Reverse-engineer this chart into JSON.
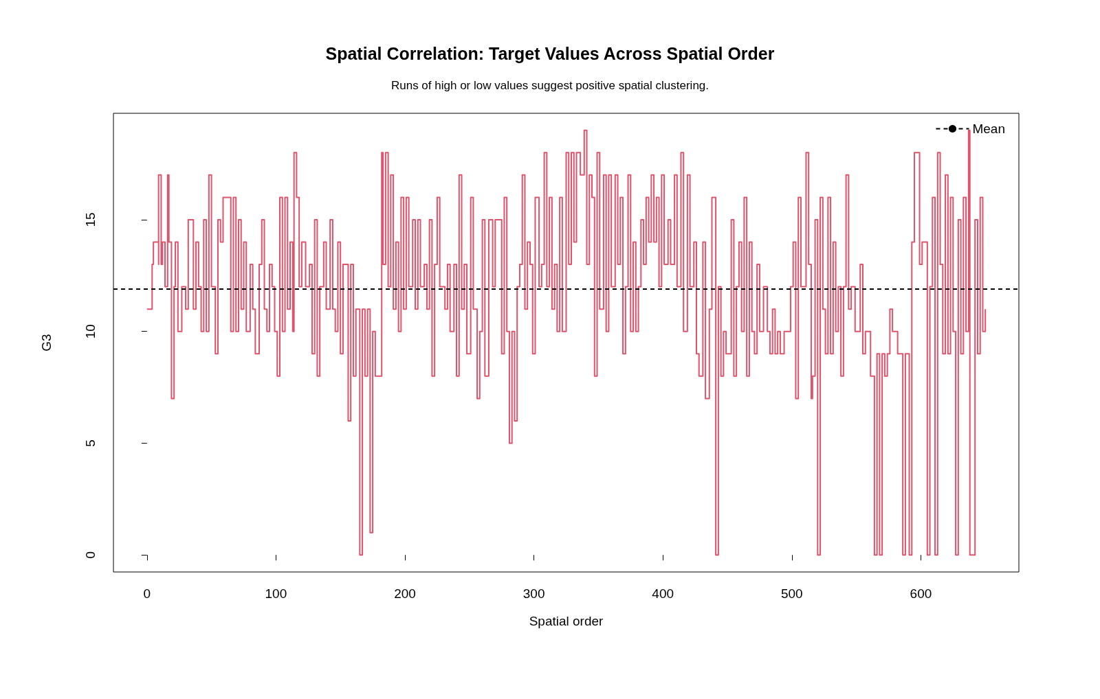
{
  "chart_data": {
    "type": "step",
    "title": "Spatial Correlation: Target Values Across Spatial Order",
    "subtitle": "Runs of high or low values suggest positive spatial clustering.",
    "xlabel": "Spatial order",
    "ylabel": "G3",
    "xlim": [
      -26,
      676
    ],
    "ylim": [
      -0.76,
      19.76
    ],
    "xticks": [
      0,
      100,
      200,
      300,
      400,
      500,
      600
    ],
    "yticks": [
      0,
      5,
      10,
      15
    ],
    "grid": false,
    "legend": "top right",
    "line_style": "solid",
    "marker": "none",
    "ref_lines": [
      {
        "axis": "y",
        "value": 11.9,
        "label": "Mean",
        "color": "#000000",
        "line_style": "dashed"
      }
    ],
    "series": [
      {
        "color": "#df536b",
        "x": [
          0,
          3,
          4,
          5,
          6,
          9,
          9,
          11,
          12,
          14,
          16,
          17,
          19,
          21,
          22,
          24,
          27,
          30,
          32,
          34,
          36,
          38,
          40,
          42,
          44,
          46,
          48,
          50,
          53,
          55,
          57,
          59,
          63,
          65,
          67,
          69,
          71,
          73,
          75,
          77,
          80,
          82,
          84,
          87,
          89,
          91,
          93,
          95,
          97,
          99,
          101,
          103,
          105,
          107,
          109,
          111,
          113,
          114,
          116,
          118,
          120,
          123,
          126,
          128,
          130,
          132,
          134,
          137,
          139,
          142,
          144,
          146,
          148,
          150,
          152,
          154,
          156,
          158,
          160,
          162,
          165,
          167,
          169,
          171,
          173,
          175,
          177,
          180,
          182,
          183,
          185,
          187,
          189,
          191,
          193,
          195,
          197,
          199,
          201,
          203,
          206,
          208,
          210,
          212,
          215,
          217,
          219,
          221,
          223,
          225,
          227,
          229,
          231,
          233,
          235,
          238,
          240,
          242,
          244,
          246,
          248,
          251,
          253,
          256,
          258,
          260,
          262,
          265,
          268,
          270,
          272,
          275,
          277,
          279,
          281,
          283,
          285,
          287,
          289,
          291,
          293,
          295,
          297,
          299,
          301,
          304,
          306,
          308,
          310,
          312,
          314,
          316,
          318,
          320,
          322,
          325,
          327,
          329,
          331,
          333,
          336,
          339,
          341,
          343,
          345,
          347,
          349,
          351,
          354,
          356,
          358,
          360,
          363,
          365,
          367,
          369,
          371,
          373,
          375,
          377,
          379,
          381,
          383,
          385,
          387,
          389,
          391,
          393,
          395,
          397,
          399,
          401,
          404,
          406,
          409,
          411,
          414,
          416,
          419,
          421,
          424,
          426,
          428,
          431,
          433,
          436,
          438,
          441,
          443,
          445,
          447,
          449,
          451,
          453,
          455,
          457,
          459,
          461,
          463,
          465,
          467,
          469,
          471,
          473,
          475,
          478,
          481,
          483,
          485,
          487,
          489,
          491,
          494,
          497,
          499,
          501,
          503,
          505,
          507,
          509,
          511,
          513,
          515,
          516,
          518,
          520,
          522,
          524,
          526,
          528,
          530,
          532,
          534,
          536,
          538,
          540,
          542,
          544,
          546,
          549,
          551,
          553,
          555,
          557,
          559,
          561,
          562,
          564,
          566,
          568,
          570,
          572,
          574,
          576,
          578,
          580,
          582,
          586,
          588,
          591,
          593,
          595,
          597,
          599,
          601,
          605,
          607,
          609,
          611,
          613,
          615,
          617,
          619,
          621,
          623,
          625,
          627,
          629,
          631,
          633,
          635,
          637,
          638,
          640,
          642,
          644,
          646,
          648,
          650
        ],
        "values": [
          11,
          11,
          13,
          14,
          14,
          13,
          17,
          13,
          14,
          12,
          17,
          14,
          7,
          12,
          14,
          10,
          12,
          11,
          15,
          15,
          11,
          14,
          12,
          10,
          15,
          10,
          17,
          12,
          9,
          15,
          14,
          16,
          16,
          10,
          16,
          10,
          15,
          11,
          14,
          10,
          13,
          11,
          9,
          13,
          15,
          11,
          10,
          13,
          12,
          10,
          8,
          16,
          10,
          16,
          11,
          14,
          10,
          18,
          16,
          12,
          14,
          12,
          13,
          9,
          15,
          8,
          12,
          14,
          11,
          15,
          11,
          10,
          14,
          9,
          13,
          13,
          6,
          13,
          8,
          11,
          0,
          11,
          8,
          11,
          1,
          10,
          8,
          8,
          18,
          13,
          18,
          12,
          17,
          11,
          14,
          10,
          16,
          11,
          16,
          12,
          15,
          11,
          15,
          12,
          13,
          11,
          15,
          8,
          13,
          16,
          12,
          12,
          11,
          13,
          10,
          13,
          8,
          17,
          11,
          13,
          9,
          16,
          11,
          7,
          10,
          15,
          8,
          15,
          12,
          15,
          15,
          9,
          16,
          10,
          5,
          10,
          6,
          12,
          13,
          17,
          11,
          14,
          13,
          9,
          16,
          12,
          13,
          18,
          12,
          16,
          11,
          13,
          10,
          16,
          10,
          18,
          13,
          18,
          14,
          18,
          17,
          19,
          13,
          17,
          16,
          8,
          18,
          11,
          17,
          10,
          17,
          12,
          17,
          13,
          16,
          9,
          12,
          17,
          10,
          14,
          10,
          12,
          15,
          13,
          16,
          14,
          17,
          14,
          16,
          12,
          17,
          13,
          15,
          13,
          17,
          12,
          18,
          10,
          17,
          12,
          14,
          9,
          8,
          14,
          7,
          11,
          16,
          0,
          12,
          8,
          10,
          9,
          9,
          15,
          8,
          12,
          14,
          10,
          16,
          8,
          14,
          10,
          9,
          13,
          10,
          12,
          10,
          9,
          11,
          9,
          10,
          9,
          10,
          10,
          12,
          14,
          7,
          16,
          12,
          12,
          18,
          13,
          7,
          8,
          15,
          0,
          16,
          11,
          9,
          16,
          9,
          14,
          10,
          12,
          8,
          12,
          17,
          11,
          12,
          10,
          10,
          13,
          9,
          10,
          10,
          8,
          8,
          0,
          9,
          0,
          9,
          8,
          9,
          11,
          10,
          10,
          9,
          0,
          9,
          0,
          14,
          18,
          18,
          13,
          14,
          0,
          12,
          16,
          0,
          18,
          13,
          9,
          17,
          9,
          16,
          10,
          0,
          15,
          9,
          16,
          10,
          19,
          0,
          0,
          15,
          9,
          16,
          10,
          11
        ]
      }
    ]
  }
}
